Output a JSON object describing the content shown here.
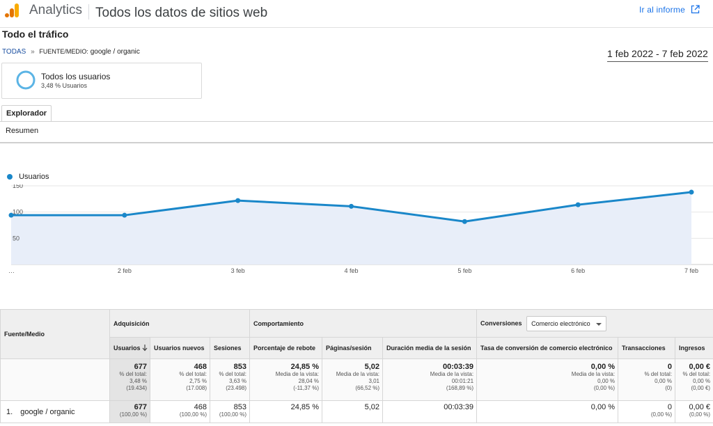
{
  "header": {
    "app_name": "Analytics",
    "property": "Todos los datos de sitios web",
    "goto_report": "Ir al informe",
    "logo_colors": [
      "#f9ab00",
      "#e37400",
      "#e37400"
    ]
  },
  "section_title": "Todo el tráfico",
  "breadcrumb": {
    "root": "TODAS",
    "separator": "»",
    "key": "FUENTE/MEDIO:",
    "value": "google / organic"
  },
  "date_range": "1 feb 2022 - 7 feb 2022",
  "segment": {
    "name": "Todos los usuarios",
    "sub": "3,48 % Usuarios",
    "ring_color": "#5bb4e5"
  },
  "tabs": {
    "explorer": "Explorador",
    "summary": "Resumen"
  },
  "chart_data": {
    "type": "line",
    "legend": "Usuarios",
    "color": "#1a87c9",
    "fill": "#e8eef9",
    "x_labels": [
      "…",
      "2 feb",
      "3 feb",
      "4 feb",
      "5 feb",
      "6 feb",
      "7 feb"
    ],
    "values": [
      94,
      94,
      122,
      111,
      82,
      114,
      138
    ],
    "y_ticks": [
      50,
      100,
      150
    ],
    "ylim": [
      0,
      150
    ]
  },
  "table": {
    "col_source": "Fuente/Medio",
    "group_acquisition": "Adquisición",
    "group_behavior": "Comportamiento",
    "group_conversions": "Conversiones",
    "conversion_select": "Comercio electrónico",
    "columns": [
      "Usuarios",
      "Usuarios nuevos",
      "Sesiones",
      "Porcentaje de rebote",
      "Páginas/sesión",
      "Duración media de la sesión",
      "Tasa de conversión de comercio electrónico",
      "Transacciones",
      "Ingresos"
    ],
    "totals": [
      {
        "main": "677",
        "sub": [
          "% del total:",
          "3,48 %",
          "(19.434)"
        ]
      },
      {
        "main": "468",
        "sub": [
          "% del total:",
          "2,75 %",
          "(17.008)"
        ]
      },
      {
        "main": "853",
        "sub": [
          "% del total:",
          "3,63 %",
          "(23.498)"
        ]
      },
      {
        "main": "24,85 %",
        "sub": [
          "Media de la vista:",
          "28,04 %",
          "(-11,37 %)"
        ]
      },
      {
        "main": "5,02",
        "sub": [
          "Media de la vista:",
          "3,01",
          "(66,52 %)"
        ]
      },
      {
        "main": "00:03:39",
        "sub": [
          "Media de la vista:",
          "00:01:21",
          "(168,89 %)"
        ]
      },
      {
        "main": "0,00 %",
        "sub": [
          "Media de la vista:",
          "0,00 %",
          "(0,00 %)"
        ]
      },
      {
        "main": "0",
        "sub": [
          "% del total:",
          "0,00 %",
          "(0)"
        ]
      },
      {
        "main": "0,00 €",
        "sub": [
          "% del total:",
          "0,00 %",
          "(0,00 €)"
        ]
      }
    ],
    "rows": [
      {
        "num": "1.",
        "source": "google / organic",
        "cells": [
          {
            "main": "677",
            "sub": "(100,00 %)"
          },
          {
            "main": "468",
            "sub": "(100,00 %)"
          },
          {
            "main": "853",
            "sub": "(100,00 %)"
          },
          {
            "main": "24,85 %",
            "sub": ""
          },
          {
            "main": "5,02",
            "sub": ""
          },
          {
            "main": "00:03:39",
            "sub": ""
          },
          {
            "main": "0,00 %",
            "sub": ""
          },
          {
            "main": "0",
            "sub": "(0,00 %)"
          },
          {
            "main": "0,00 €",
            "sub": "(0,00 %)"
          }
        ]
      }
    ]
  }
}
